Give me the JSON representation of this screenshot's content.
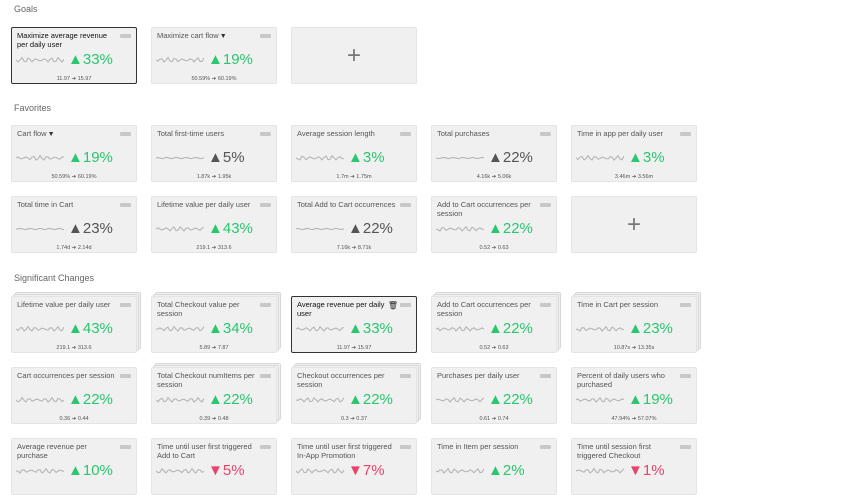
{
  "sections": {
    "goals": "Goals",
    "favorites": "Favorites",
    "significant": "Significant Changes"
  },
  "icons": {
    "filter": "filter-icon",
    "trash": "trash-icon",
    "menu": "menu-bar-icon",
    "add": "plus-icon"
  },
  "glyphs": {
    "filter": "▼",
    "trash": "🗑",
    "add": "+"
  },
  "goals": [
    {
      "title": "Maximize average revenue per daily user",
      "delta": "▲33%",
      "dir": "up",
      "range": "11.97 ➔ 15.97",
      "selected": true
    },
    {
      "title": "Maximize cart flow",
      "filter": true,
      "delta": "▲19%",
      "dir": "up",
      "range": "50.59% ➔ 60.19%"
    }
  ],
  "favorites": [
    {
      "title": "Cart flow",
      "filter": true,
      "delta": "▲19%",
      "dir": "up",
      "range": "50.59% ➔ 60.19%"
    },
    {
      "title": "Total first-time users",
      "delta": "▲5%",
      "dir": "flat",
      "range": "1.87k ➔ 1.95k"
    },
    {
      "title": "Average session length",
      "delta": "▲3%",
      "dir": "up",
      "range": "1.7m ➔ 1.75m"
    },
    {
      "title": "Total purchases",
      "delta": "▲22%",
      "dir": "flat",
      "range": "4.16k ➔ 5.06k"
    },
    {
      "title": "Time in app per daily user",
      "delta": "▲3%",
      "dir": "up",
      "range": "3.46m ➔ 3.56m"
    },
    {
      "title": "Total time in Cart",
      "delta": "▲23%",
      "dir": "flat",
      "range": "1.74d ➔ 2.14d"
    },
    {
      "title": "Lifetime value per daily user",
      "delta": "▲43%",
      "dir": "up",
      "range": "219.1 ➔ 313.6"
    },
    {
      "title": "Total Add to Cart occurrences",
      "delta": "▲22%",
      "dir": "flat",
      "range": "7.16k ➔ 8.71k"
    },
    {
      "title": "Add to Cart occurrences per session",
      "delta": "▲22%",
      "dir": "up",
      "range": "0.52 ➔ 0.63"
    }
  ],
  "significant": [
    {
      "title": "Lifetime value per daily user",
      "delta": "▲43%",
      "dir": "up",
      "range": "219.1 ➔ 313.6",
      "stacked": true
    },
    {
      "title": "Total Checkout value per session",
      "delta": "▲34%",
      "dir": "up",
      "range": "5.89 ➔ 7.87",
      "stacked": true
    },
    {
      "title": "Average revenue per daily user",
      "delta": "▲33%",
      "dir": "up",
      "range": "11.97 ➔ 15.97",
      "selected": true,
      "trash": true
    },
    {
      "title": "Add to Cart occurrences per session",
      "delta": "▲22%",
      "dir": "up",
      "range": "0.52 ➔ 0.63",
      "stacked": true
    },
    {
      "title": "Time in Cart per session",
      "delta": "▲23%",
      "dir": "up",
      "range": "10.87s ➔ 13.35s",
      "stacked": true
    },
    {
      "title": "Cart occurrences per session",
      "delta": "▲22%",
      "dir": "up",
      "range": "0.36 ➔ 0.44"
    },
    {
      "title": "Total Checkout numItems per session",
      "delta": "▲22%",
      "dir": "up",
      "range": "0.39 ➔ 0.48",
      "stacked": true
    },
    {
      "title": "Checkout occurrences per session",
      "delta": "▲22%",
      "dir": "up",
      "range": "0.3 ➔ 0.37",
      "stacked": true
    },
    {
      "title": "Purchases per daily user",
      "delta": "▲22%",
      "dir": "up",
      "range": "0.61 ➔ 0.74"
    },
    {
      "title": "Percent of daily users who purchased",
      "delta": "▲19%",
      "dir": "up",
      "range": "47.94% ➔ 57.07%"
    },
    {
      "title": "Average revenue per purchase",
      "delta": "▲10%",
      "dir": "up",
      "range": ""
    },
    {
      "title": "Time until user first triggered Add to Cart",
      "delta": "▼5%",
      "dir": "down",
      "range": ""
    },
    {
      "title": "Time until user first triggered In-App Promotion",
      "delta": "▼7%",
      "dir": "down",
      "range": ""
    },
    {
      "title": "Time in Item per session",
      "delta": "▲2%",
      "dir": "up",
      "range": ""
    },
    {
      "title": "Time until session first triggered Checkout",
      "delta": "▼1%",
      "dir": "down",
      "range": ""
    }
  ]
}
